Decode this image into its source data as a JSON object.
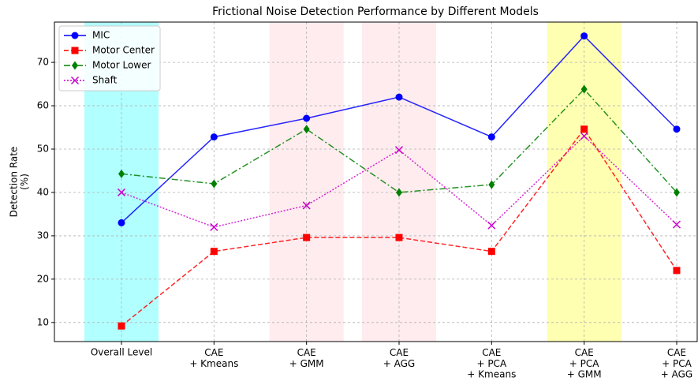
{
  "chart_data": {
    "type": "line",
    "title": "Frictional Noise Detection Performance by Different Models",
    "y_label": "Detection Rate\n(%)",
    "categories": [
      "Overall Level",
      "CAE\n+ Kmeans",
      "CAE\n+ GMM",
      "CAE\n+ AGG",
      "CAE\n+ PCA\n+ Kmeans",
      "CAE\n+ PCA\n+ GMM",
      "CAE\n+ PCA\n+ AGG"
    ],
    "series": [
      {
        "name": "MIC",
        "color": "#0000ff",
        "marker": "circle",
        "linestyle": "solid",
        "values": [
          33,
          52.8,
          57.1,
          62,
          52.8,
          76.1,
          54.6
        ]
      },
      {
        "name": "Motor Center",
        "color": "#ff0000",
        "marker": "square",
        "linestyle": "dashed",
        "values": [
          9.2,
          26.4,
          29.6,
          29.6,
          26.4,
          54.6,
          22
        ]
      },
      {
        "name": "Motor Lower",
        "color": "#008000",
        "marker": "diamond",
        "linestyle": "dashdot",
        "values": [
          44.3,
          42,
          54.6,
          40,
          41.8,
          63.8,
          40
        ]
      },
      {
        "name": "Shaft",
        "color": "#cc00cc",
        "marker": "x",
        "linestyle": "dotted",
        "values": [
          40,
          32,
          37,
          49.8,
          32.4,
          53,
          32.6
        ]
      }
    ],
    "highlights": [
      {
        "index": 0,
        "color": "#00ffff"
      },
      {
        "index": 2,
        "color": "#ffc0cb"
      },
      {
        "index": 3,
        "color": "#ffc0cb"
      },
      {
        "index": 5,
        "color": "#ffff00"
      }
    ],
    "ylim": [
      5.6,
      79.3
    ],
    "yticks": [
      10,
      20,
      30,
      40,
      50,
      60,
      70
    ],
    "grid": true,
    "legend": "upper left"
  }
}
